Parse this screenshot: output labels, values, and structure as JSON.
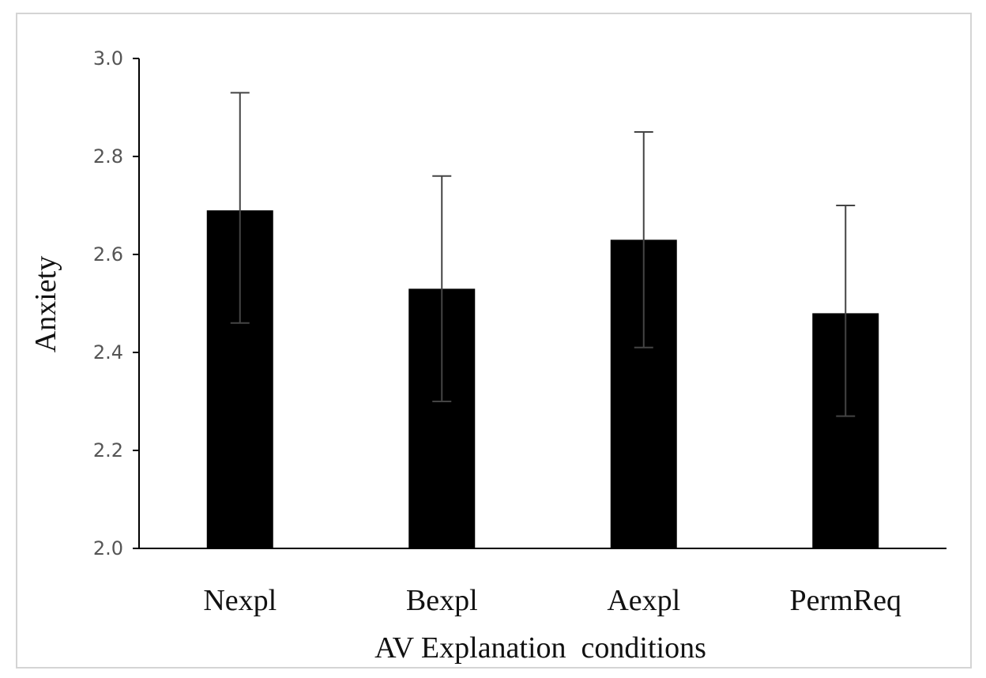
{
  "chart_data": {
    "type": "bar",
    "title": "",
    "xlabel": "AV Explanation  conditions",
    "ylabel": "Anxiety",
    "categories": [
      "Nexpl",
      "Bexpl",
      "Aexpl",
      "PermReq"
    ],
    "values": [
      2.69,
      2.53,
      2.63,
      2.48
    ],
    "error_low": [
      2.46,
      2.3,
      2.41,
      2.27
    ],
    "error_high": [
      2.93,
      2.76,
      2.85,
      2.7
    ],
    "ylim": [
      2.0,
      3.0
    ],
    "yticks": [
      "2.0",
      "2.2",
      "2.4",
      "2.6",
      "2.8",
      "3.0"
    ],
    "grid": false,
    "bar_color": "#000000",
    "error_bar_color": "#444444",
    "axis_color": "#000000"
  }
}
